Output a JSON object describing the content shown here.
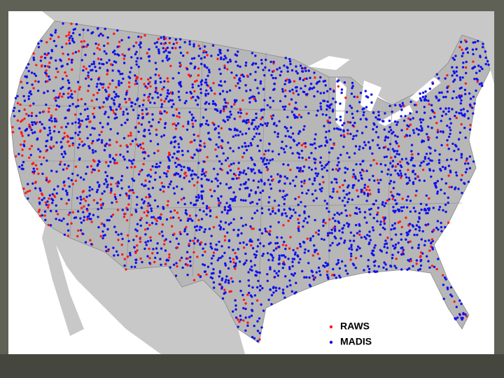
{
  "legend": {
    "items": [
      {
        "label": "RAWS",
        "color": "#ff1a1a"
      },
      {
        "label": "MADIS",
        "color": "#1010ee"
      }
    ]
  }
}
